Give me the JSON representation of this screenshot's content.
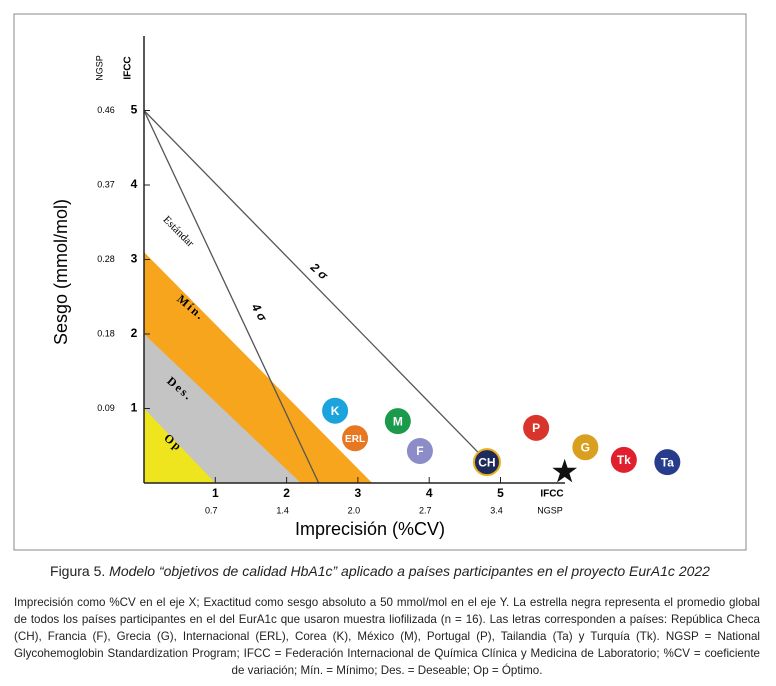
{
  "chart_data": {
    "type": "scatter",
    "ylabel": "Sesgo (mmol/mol)",
    "xlabel": "Imprecisión (%CV)",
    "y_axis_names": [
      "NGSP",
      "IFCC"
    ],
    "x_axis_names": [
      "IFCC",
      "NGSP"
    ],
    "xlim": [
      0,
      7.5
    ],
    "ylim": [
      0,
      6
    ],
    "xticks": [
      1,
      2,
      3,
      4,
      5
    ],
    "yticks": [
      1,
      2,
      3,
      4,
      5
    ],
    "x2ticks": [
      {
        "value": 1,
        "label": "0.7"
      },
      {
        "value": 2,
        "label": "1.4"
      },
      {
        "value": 3,
        "label": "2.0"
      },
      {
        "value": 4,
        "label": "2.7"
      },
      {
        "value": 5,
        "label": "3.4"
      }
    ],
    "y2ticks": [
      {
        "value": 1,
        "label": "0.09"
      },
      {
        "value": 2,
        "label": "0.18"
      },
      {
        "value": 3,
        "label": "0.28"
      },
      {
        "value": 4,
        "label": "0.37"
      },
      {
        "value": 5,
        "label": "0.46"
      }
    ],
    "regions": [
      {
        "label": "Mín.",
        "color": "#f7a51c",
        "y0": 3.1,
        "x0": 3.2
      },
      {
        "label": "Des.",
        "color": "#c4c4c4",
        "y0": 2.0,
        "x0": 2.2
      },
      {
        "label": "Op",
        "color": "#eee51e",
        "y0": 1.0,
        "x0": 1.0
      }
    ],
    "lines": [
      {
        "label": "4 σ",
        "points": [
          [
            0,
            5
          ],
          [
            2.45,
            0
          ]
        ]
      },
      {
        "label": "2 σ",
        "points": [
          [
            0,
            5
          ],
          [
            4.8,
            0.3
          ]
        ]
      }
    ],
    "line_annotation": "Estándar",
    "points": [
      {
        "label": "K",
        "color": "#1aa3dd",
        "x": 2.68,
        "y": 0.97
      },
      {
        "label": "ERL",
        "color": "#e87722",
        "x": 2.96,
        "y": 0.6
      },
      {
        "label": "M",
        "color": "#1a9a4a",
        "x": 3.56,
        "y": 0.83
      },
      {
        "label": "F",
        "color": "#8c8cc8",
        "x": 3.87,
        "y": 0.43
      },
      {
        "label": "CH",
        "color": "#1e2a5a",
        "x": 4.81,
        "y": 0.28
      },
      {
        "label": "P",
        "color": "#d9342b",
        "x": 5.5,
        "y": 0.74
      },
      {
        "label": "G",
        "color": "#d9a020",
        "x": 6.19,
        "y": 0.48
      },
      {
        "label": "Tk",
        "color": "#e0202e",
        "x": 6.73,
        "y": 0.31
      },
      {
        "label": "Ta",
        "color": "#283c8c",
        "x": 7.34,
        "y": 0.28
      }
    ],
    "star": {
      "x": 5.9,
      "y": 0.15
    }
  },
  "caption": {
    "figure_label": "Figura 5.",
    "figure_title": "Modelo “objetivos de calidad HbA1c” aplicado a países participantes en el proyecto EurA1c 2022",
    "description": "Imprecisión como %CV en el eje X; Exactitud como sesgo absoluto a 50 mmol/mol en el eje Y. La estrella negra representa el promedio global de todos los países participantes en el del EurA1c que usaron muestra liofilizada (n = 16). Las letras corresponden a países: República Checa (CH), Francia (F), Grecia (G), Internacional (ERL), Corea (K), México (M), Portugal (P), Tailandia (Ta) y Turquía (Tk). NGSP = National Glycohemoglobin Standardization Program; IFCC = Federación Internacional de Química Clínica y Medicina de Laboratorio; %CV = coeficiente de variación; Mín. = Mínimo; Des. = Deseable; Op = Óptimo."
  }
}
